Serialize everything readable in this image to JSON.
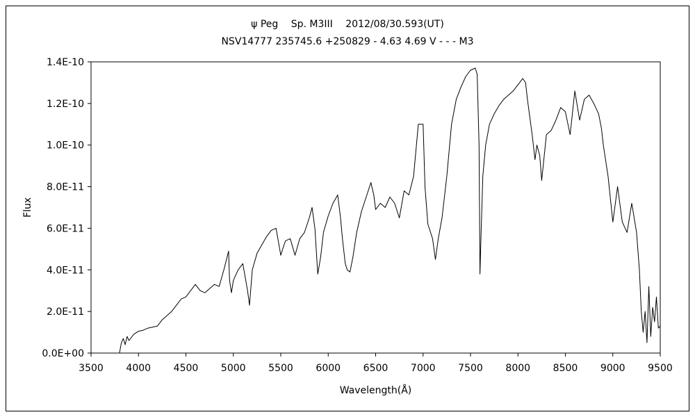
{
  "chart_data": {
    "type": "line",
    "title_lines": [
      "ψ Peg　 Sp. M3III　 2012/08/30.593(UT)",
      "NSV14777 235745.6 +250829 - 4.63 4.69 V - - - M3"
    ],
    "xlabel": "Wavelength(Å)",
    "ylabel": "Flux",
    "xlim": [
      3500,
      9500
    ],
    "ylim": [
      0,
      1.4e-10
    ],
    "xticks": [
      3500,
      4000,
      4500,
      5000,
      5500,
      6000,
      6500,
      7000,
      7500,
      8000,
      8500,
      9000,
      9500
    ],
    "yticks": [
      0,
      2e-11,
      4e-11,
      6e-11,
      8e-11,
      1e-10,
      1.2e-10,
      1.4e-10
    ],
    "ytick_labels": [
      "0.0E+00",
      "2.0E-11",
      "4.0E-11",
      "6.0E-11",
      "8.0E-11",
      "1.0E-10",
      "1.2E-10",
      "1.4E-10"
    ],
    "grid": false,
    "legend": "none",
    "series": [
      {
        "color": "#000000",
        "x": [
          3800,
          3820,
          3840,
          3860,
          3880,
          3900,
          3950,
          4000,
          4050,
          4100,
          4150,
          4200,
          4250,
          4300,
          4350,
          4400,
          4450,
          4500,
          4550,
          4600,
          4650,
          4700,
          4750,
          4800,
          4850,
          4900,
          4950,
          4960,
          4980,
          5000,
          5050,
          5100,
          5150,
          5170,
          5200,
          5250,
          5300,
          5350,
          5400,
          5450,
          5500,
          5520,
          5550,
          5600,
          5650,
          5700,
          5750,
          5800,
          5830,
          5860,
          5890,
          5920,
          5950,
          6000,
          6050,
          6100,
          6130,
          6150,
          6180,
          6200,
          6230,
          6260,
          6300,
          6350,
          6400,
          6450,
          6480,
          6500,
          6550,
          6600,
          6650,
          6700,
          6750,
          6800,
          6850,
          6900,
          6950,
          7000,
          7020,
          7050,
          7100,
          7130,
          7160,
          7200,
          7250,
          7300,
          7350,
          7400,
          7450,
          7500,
          7550,
          7570,
          7590,
          7600,
          7610,
          7630,
          7660,
          7700,
          7750,
          7800,
          7850,
          7900,
          7950,
          8000,
          8050,
          8080,
          8100,
          8150,
          8180,
          8200,
          8230,
          8250,
          8300,
          8350,
          8400,
          8450,
          8500,
          8550,
          8600,
          8650,
          8700,
          8750,
          8800,
          8850,
          8880,
          8900,
          8950,
          9000,
          9050,
          9100,
          9150,
          9200,
          9250,
          9280,
          9300,
          9320,
          9340,
          9360,
          9380,
          9400,
          9420,
          9440,
          9460,
          9480,
          9500
        ],
        "values": [
          0,
          5e-12,
          7e-12,
          4e-12,
          8e-12,
          6e-12,
          9e-12,
          1.05e-11,
          1.1e-11,
          1.2e-11,
          1.25e-11,
          1.3e-11,
          1.6e-11,
          1.8e-11,
          2e-11,
          2.3e-11,
          2.6e-11,
          2.7e-11,
          3e-11,
          3.3e-11,
          3e-11,
          2.9e-11,
          3.1e-11,
          3.3e-11,
          3.2e-11,
          4e-11,
          4.9e-11,
          3.5e-11,
          2.9e-11,
          3.5e-11,
          4e-11,
          4.3e-11,
          3e-11,
          2.3e-11,
          4e-11,
          4.8e-11,
          5.2e-11,
          5.6e-11,
          5.9e-11,
          6e-11,
          4.7e-11,
          5e-11,
          5.4e-11,
          5.5e-11,
          4.7e-11,
          5.5e-11,
          5.8e-11,
          6.5e-11,
          7e-11,
          6e-11,
          3.8e-11,
          4.6e-11,
          5.8e-11,
          6.6e-11,
          7.2e-11,
          7.6e-11,
          6.5e-11,
          5.5e-11,
          4.3e-11,
          4e-11,
          3.9e-11,
          4.6e-11,
          5.8e-11,
          6.8e-11,
          7.5e-11,
          8.2e-11,
          7.6e-11,
          6.9e-11,
          7.2e-11,
          7e-11,
          7.5e-11,
          7.2e-11,
          6.5e-11,
          7.8e-11,
          7.6e-11,
          8.5e-11,
          1.1e-10,
          1.1e-10,
          8e-11,
          6.2e-11,
          5.5e-11,
          4.5e-11,
          5.5e-11,
          6.5e-11,
          8.5e-11,
          1.1e-10,
          1.22e-10,
          1.28e-10,
          1.33e-10,
          1.36e-10,
          1.37e-10,
          1.34e-10,
          1e-10,
          3.8e-11,
          5.5e-11,
          8.5e-11,
          1e-10,
          1.1e-10,
          1.15e-10,
          1.19e-10,
          1.22e-10,
          1.24e-10,
          1.26e-10,
          1.29e-10,
          1.32e-10,
          1.3e-10,
          1.22e-10,
          1.05e-10,
          9.3e-11,
          1e-10,
          9.5e-11,
          8.3e-11,
          1.05e-10,
          1.07e-10,
          1.12e-10,
          1.18e-10,
          1.16e-10,
          1.05e-10,
          1.26e-10,
          1.12e-10,
          1.22e-10,
          1.24e-10,
          1.2e-10,
          1.15e-10,
          1.08e-10,
          1e-10,
          8.5e-11,
          6.3e-11,
          8e-11,
          6.3e-11,
          5.8e-11,
          7.2e-11,
          5.8e-11,
          4e-11,
          2e-11,
          1e-11,
          2e-11,
          5e-12,
          3.2e-11,
          8e-12,
          2.2e-11,
          1.5e-11,
          2.7e-11,
          1.2e-11,
          1.3e-11
        ]
      }
    ]
  }
}
